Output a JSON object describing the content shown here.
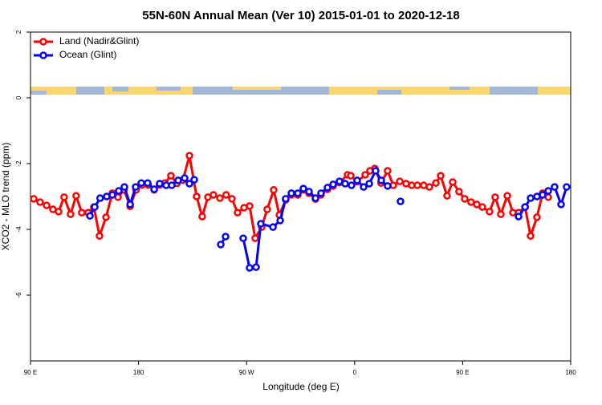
{
  "chart_data": {
    "type": "line",
    "title": "55N-60N Annual Mean (Ver 10)   2015-01-01 to 2020-12-18",
    "x_label": "Longitude (deg E)",
    "y_label": "XCO2 - MLO trend (ppm)",
    "xlim": [
      90,
      540
    ],
    "xticks": [
      {
        "value": 90,
        "label": "90 E"
      },
      {
        "value": 180,
        "label": "180"
      },
      {
        "value": 270,
        "label": "90 W"
      },
      {
        "value": 360,
        "label": "0"
      },
      {
        "value": 450,
        "label": "90 E"
      },
      {
        "value": 540,
        "label": "180"
      }
    ],
    "ylim": [
      -8,
      2
    ],
    "yticks": [
      -6,
      -4,
      -2,
      0,
      2
    ],
    "legend": "top-left",
    "series": [
      {
        "name": "Land (Nadir&Glint)",
        "color": "#ff0000",
        "x": [
          92.7,
          98,
          103.4,
          108.7,
          113.4,
          118,
          123.4,
          128,
          132.7,
          138,
          142.8,
          147.5,
          152.9,
          158.2,
          162.9,
          168,
          173,
          178,
          183,
          188,
          193,
          197.6,
          202,
          207,
          212,
          217,
          222.4,
          228.4,
          233,
          237.8,
          242.4,
          247.8,
          253,
          257.8,
          262.5,
          267.9,
          272.5,
          277.2,
          282.6,
          287.2,
          292.6,
          297.3,
          302.6,
          307.3,
          312.7,
          317.3,
          322,
          327.4,
          332,
          337.4,
          342.1,
          347.4,
          354.1,
          356.8,
          362.1,
          368.8,
          372.8,
          376.8,
          382,
          387.5,
          392.2,
          397.6,
          402.9,
          407.6,
          412.3,
          417.6,
          422.3,
          427.7,
          431.7,
          437,
          441.7,
          447,
          451.7,
          457,
          461.8,
          466.4,
          472.4,
          477.1,
          481.8,
          487.2,
          491.9,
          496.6,
          502,
          506.6,
          511.9,
          516.6,
          521.3
        ],
        "values": [
          -3.07,
          -3.17,
          -3.27,
          -3.39,
          -3.46,
          -3.02,
          -3.54,
          -2.98,
          -3.49,
          -3.49,
          -3.32,
          -4.2,
          -3.63,
          -2.9,
          -3.02,
          -2.8,
          -3.3,
          -2.8,
          -2.65,
          -2.65,
          -2.8,
          -2.65,
          -2.59,
          -2.37,
          -2.6,
          -2.5,
          -1.76,
          -3.0,
          -3.61,
          -3.02,
          -2.95,
          -3.05,
          -2.95,
          -3.07,
          -3.49,
          -3.34,
          -3.29,
          -4.27,
          -3.93,
          -3.39,
          -2.8,
          -3.56,
          -3.1,
          -2.95,
          -2.95,
          -2.8,
          -2.9,
          -3.08,
          -2.95,
          -2.78,
          -2.68,
          -2.58,
          -2.34,
          -2.37,
          -2.55,
          -2.34,
          -2.22,
          -2.15,
          -2.59,
          -2.22,
          -2.66,
          -2.54,
          -2.61,
          -2.66,
          -2.66,
          -2.66,
          -2.71,
          -2.59,
          -2.37,
          -2.98,
          -2.56,
          -2.85,
          -3.07,
          -3.17,
          -3.24,
          -3.32,
          -3.46,
          -3.02,
          -3.54,
          -2.98,
          -3.49,
          -3.49,
          -3.32,
          -4.2,
          -3.63,
          -2.9,
          -3.02
        ]
      },
      {
        "name": "Ocean (Glint)",
        "color": "#0000ff",
        "x": [
          139.5,
          143.5,
          148,
          153.5,
          158.2,
          163.5,
          168.2,
          173,
          177.6,
          182.3,
          187.6,
          193,
          197.6,
          203,
          207.7,
          213,
          218.4,
          222.4,
          226.4,
          null,
          248.5,
          252.5,
          null,
          267.2,
          272.5,
          277.9,
          281.9,
          292,
          298,
          302.6,
          307.3,
          312.7,
          317.3,
          322,
          327.4,
          332,
          337.4,
          342.1,
          347.4,
          352.1,
          357.4,
          362.1,
          367.5,
          372.2,
          377.5,
          382.2,
          387.5,
          null,
          398.2,
          null,
          496.6,
          502,
          506.6,
          511.9,
          516.6,
          521.3,
          526.6,
          532,
          536.6
        ],
        "values": [
          -3.59,
          -3.32,
          -3.05,
          -3.0,
          -2.95,
          -2.83,
          -2.71,
          -3.24,
          -2.71,
          -2.59,
          -2.59,
          -2.78,
          -2.61,
          -2.66,
          -2.66,
          -2.51,
          -2.44,
          -2.61,
          -2.49,
          null,
          -4.46,
          -4.22,
          null,
          -4.27,
          -5.17,
          -5.15,
          -3.83,
          -3.93,
          -3.73,
          -3.07,
          -2.9,
          -2.9,
          -2.76,
          -2.85,
          -3.05,
          -2.9,
          -2.73,
          -2.63,
          -2.54,
          -2.61,
          -2.66,
          -2.51,
          -2.71,
          -2.61,
          -2.22,
          -2.51,
          -2.68,
          null,
          -3.15,
          null,
          -3.61,
          -3.32,
          -3.05,
          -3.0,
          -2.95,
          -2.83,
          -2.71,
          -3.24,
          -2.71
        ]
      }
    ]
  }
}
